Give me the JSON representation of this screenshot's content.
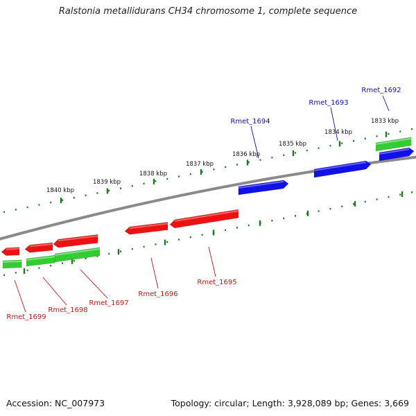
{
  "title": "Ralstonia metallidurans CH34 chromosome 1, complete sequence",
  "footer": {
    "accession": "Accession: NC_007973",
    "stats": "Topology: circular; Length: 3,928,089 bp; Genes: 3,669"
  },
  "colors": {
    "backbone": "#8a8a8a",
    "ticks": "#1a7a1a",
    "forward_gene": "#1010e8",
    "reverse_gene": "#ee1111",
    "cds": "#33cc33",
    "forward_label": "#1010b0",
    "reverse_label": "#cc1111"
  },
  "ruler": [
    {
      "label": "1840 kbp"
    },
    {
      "label": "1839 kbp"
    },
    {
      "label": "1838 kbp"
    },
    {
      "label": "1837 kbp"
    },
    {
      "label": "1836 kbp"
    },
    {
      "label": "1835 kbp"
    },
    {
      "label": "1834 kbp"
    },
    {
      "label": "1833 kbp"
    }
  ],
  "genes": [
    {
      "name": "Rmet_1692",
      "strand": "forward"
    },
    {
      "name": "Rmet_1693",
      "strand": "forward"
    },
    {
      "name": "Rmet_1694",
      "strand": "forward"
    },
    {
      "name": "Rmet_1695",
      "strand": "reverse"
    },
    {
      "name": "Rmet_1696",
      "strand": "reverse"
    },
    {
      "name": "Rmet_1697",
      "strand": "reverse"
    },
    {
      "name": "Rmet_1698",
      "strand": "reverse"
    },
    {
      "name": "Rmet_1699",
      "strand": "reverse"
    }
  ]
}
